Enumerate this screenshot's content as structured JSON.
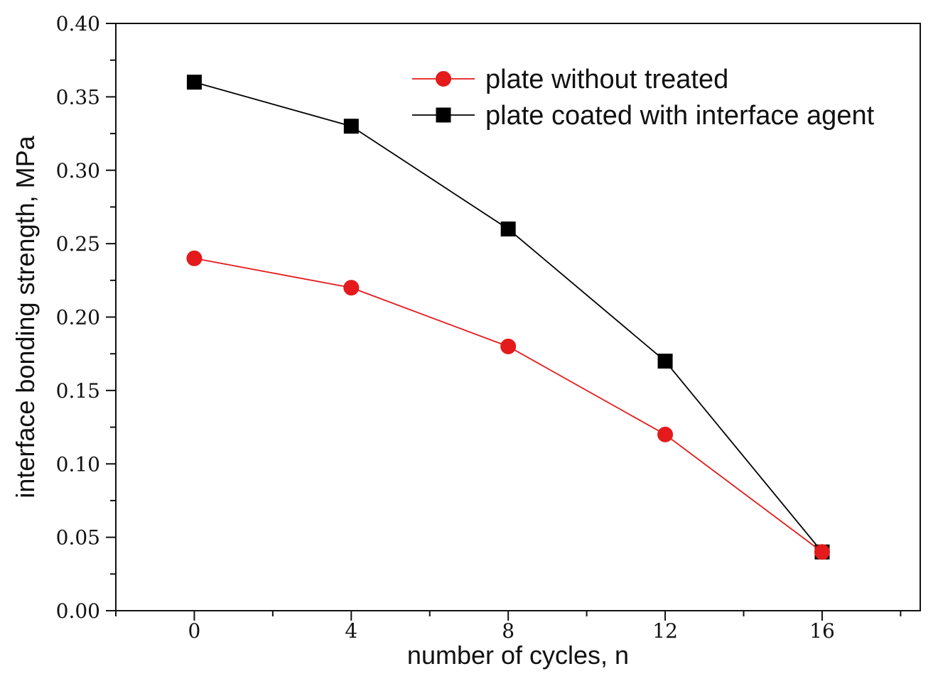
{
  "chart_data": {
    "type": "line",
    "title": "",
    "xlabel": "number of cycles, n",
    "ylabel": "interface bonding strength, MPa",
    "x": [
      0,
      4,
      8,
      12,
      16
    ],
    "xlim": [
      -2,
      18.5
    ],
    "ylim": [
      0,
      0.4
    ],
    "xticks": [
      {
        "value": 0,
        "label": "0"
      },
      {
        "value": 4,
        "label": "4"
      },
      {
        "value": 8,
        "label": "8"
      },
      {
        "value": 12,
        "label": "12"
      },
      {
        "value": 16,
        "label": "16"
      }
    ],
    "yticks": [
      {
        "value": 0.0,
        "label": "0.00"
      },
      {
        "value": 0.05,
        "label": "0.05"
      },
      {
        "value": 0.1,
        "label": "0.10"
      },
      {
        "value": 0.15,
        "label": "0.15"
      },
      {
        "value": 0.2,
        "label": "0.20"
      },
      {
        "value": 0.25,
        "label": "0.25"
      },
      {
        "value": 0.3,
        "label": "0.30"
      },
      {
        "value": 0.35,
        "label": "0.35"
      },
      {
        "value": 0.4,
        "label": "0.40"
      }
    ],
    "series": [
      {
        "name": "plate coated with interface agent",
        "marker": "square",
        "color": "#000000",
        "values": [
          0.36,
          0.33,
          0.26,
          0.17,
          0.04
        ]
      },
      {
        "name": "plate without treated",
        "marker": "circle",
        "color": "#e41a1c",
        "values": [
          0.24,
          0.22,
          0.18,
          0.12,
          0.04
        ]
      }
    ],
    "legend": {
      "placement": "top-right",
      "order": [
        "plate without treated",
        "plate coated with interface agent"
      ]
    },
    "grid": false
  }
}
